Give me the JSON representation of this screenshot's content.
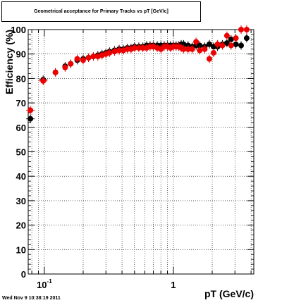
{
  "header": {
    "title": "Geometrical acceptance for Primary Tracks vs pT [GeV/c]"
  },
  "footer": {
    "timestamp": "Wed Nov  9 10:38:19 2011"
  },
  "chart_data": {
    "type": "scatter",
    "title": "Geometrical acceptance for Primary Tracks vs pT [GeV/c]",
    "xlabel": "pT (GeV/c)",
    "ylabel": "Efficiency (%)",
    "xscale": "log",
    "xlim": [
      0.075,
      4.2
    ],
    "ylim": [
      0,
      100
    ],
    "grid": true,
    "x_ticks": [
      {
        "value": 0.1,
        "label": "10-1"
      },
      {
        "value": 1,
        "label": "1"
      }
    ],
    "y_ticks": [
      0,
      10,
      20,
      30,
      40,
      50,
      60,
      70,
      80,
      90,
      100
    ],
    "series": [
      {
        "color": "#000000",
        "x": [
          0.078,
          0.098,
          0.122,
          0.145,
          0.16,
          0.18,
          0.2,
          0.22,
          0.24,
          0.26,
          0.28,
          0.3,
          0.32,
          0.35,
          0.38,
          0.41,
          0.44,
          0.47,
          0.5,
          0.54,
          0.58,
          0.62,
          0.66,
          0.7,
          0.75,
          0.8,
          0.85,
          0.9,
          0.95,
          1.0,
          1.05,
          1.1,
          1.15,
          1.2,
          1.3,
          1.4,
          1.5,
          1.6,
          1.75,
          1.9,
          2.05,
          2.2,
          2.4,
          2.6,
          2.8,
          3.05,
          3.35,
          3.7
        ],
        "values": [
          63.5,
          79.5,
          82.5,
          85.0,
          86.0,
          87.5,
          88.0,
          88.5,
          89.0,
          89.5,
          90.0,
          90.5,
          91.0,
          91.5,
          92.0,
          92.0,
          92.5,
          92.5,
          93.0,
          93.0,
          93.0,
          93.5,
          93.5,
          93.5,
          93.5,
          93.5,
          93.5,
          93.5,
          93.5,
          93.5,
          93.5,
          93.5,
          94.0,
          94.0,
          93.5,
          93.0,
          93.5,
          93.5,
          93.0,
          94.0,
          93.0,
          93.0,
          94.0,
          94.5,
          96.0,
          94.0,
          93.5,
          96.5
        ]
      },
      {
        "color": "#ee0000",
        "x": [
          0.078,
          0.098,
          0.122,
          0.145,
          0.16,
          0.18,
          0.2,
          0.22,
          0.24,
          0.26,
          0.28,
          0.3,
          0.32,
          0.35,
          0.38,
          0.41,
          0.44,
          0.47,
          0.5,
          0.54,
          0.58,
          0.62,
          0.66,
          0.7,
          0.75,
          0.8,
          0.85,
          0.9,
          0.95,
          1.0,
          1.05,
          1.1,
          1.15,
          1.2,
          1.3,
          1.4,
          1.5,
          1.6,
          1.75,
          1.9,
          2.05,
          2.2,
          2.4,
          2.6,
          2.8,
          3.05,
          3.35,
          3.7
        ],
        "values": [
          67.0,
          79.0,
          82.5,
          84.5,
          86.0,
          88.0,
          87.5,
          88.5,
          89.0,
          89.0,
          89.5,
          90.0,
          90.5,
          91.0,
          91.5,
          91.5,
          92.0,
          92.0,
          92.5,
          92.5,
          92.5,
          92.5,
          93.0,
          93.0,
          92.5,
          92.0,
          93.0,
          93.0,
          92.5,
          93.0,
          93.0,
          93.0,
          92.5,
          92.0,
          92.0,
          92.0,
          95.0,
          91.5,
          92.0,
          88.0,
          90.5,
          94.0,
          93.5,
          97.5,
          93.5,
          96.5,
          100.0,
          100.0
        ]
      }
    ]
  }
}
